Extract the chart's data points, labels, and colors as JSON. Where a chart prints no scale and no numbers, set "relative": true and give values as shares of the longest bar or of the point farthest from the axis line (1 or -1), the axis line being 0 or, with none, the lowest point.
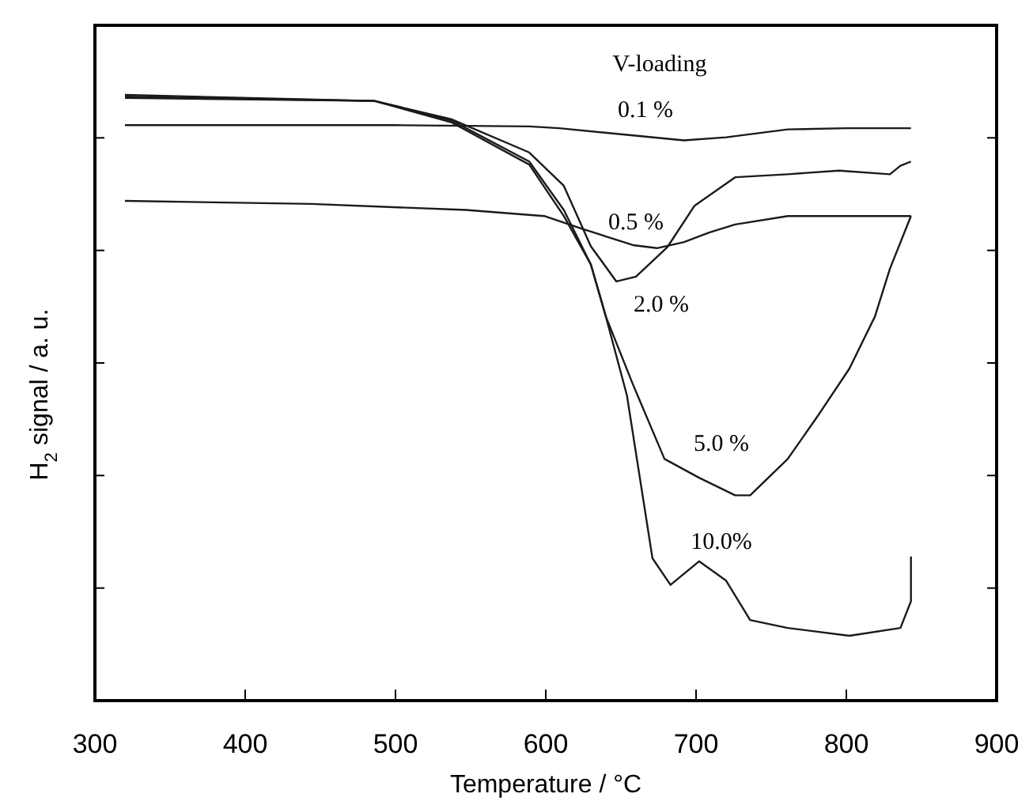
{
  "chart_data": {
    "type": "line",
    "relative": true,
    "xlabel": "Temperature / °C",
    "ylabel": "H$_{2}$ signal / a. u.",
    "legend_title": "V-loading",
    "xlim": [
      300,
      900
    ],
    "xticks": [
      300,
      400,
      500,
      600,
      700,
      800,
      900
    ],
    "line_style": "solid",
    "series": [
      {
        "name": "0.1 %",
        "color": "#1a1a1a",
        "x": [
          320,
          400,
          500,
          589,
          609,
          650,
          692,
          720,
          761,
          800,
          843
        ],
        "values": [
          0.95,
          0.95,
          0.95,
          0.948,
          0.945,
          0.935,
          0.925,
          0.93,
          0.943,
          0.945,
          0.945
        ]
      },
      {
        "name": "0.5 %",
        "color": "#1a1a1a",
        "x": [
          320,
          444,
          547,
          599,
          623,
          658,
          674,
          692,
          709,
          726,
          761,
          795,
          843
        ],
        "values": [
          0.825,
          0.82,
          0.81,
          0.8,
          0.78,
          0.752,
          0.747,
          0.757,
          0.773,
          0.786,
          0.8,
          0.8,
          0.8
        ]
      },
      {
        "name": "2.0 %",
        "color": "#1a1a1a",
        "x": [
          320,
          486,
          537,
          589,
          612,
          630,
          647,
          660,
          681,
          699,
          726,
          761,
          795,
          829,
          836,
          843
        ],
        "values": [
          0.995,
          0.99,
          0.96,
          0.905,
          0.85,
          0.75,
          0.692,
          0.7,
          0.749,
          0.817,
          0.864,
          0.869,
          0.875,
          0.869,
          0.883,
          0.89
        ]
      },
      {
        "name": "5.0 %",
        "color": "#1a1a1a",
        "x": [
          320,
          486,
          537,
          589,
          612,
          630,
          640,
          658,
          679,
          702,
          726,
          736,
          761,
          781,
          802,
          819,
          829,
          843
        ],
        "values": [
          0.997,
          0.99,
          0.955,
          0.885,
          0.8,
          0.72,
          0.634,
          0.522,
          0.399,
          0.368,
          0.339,
          0.339,
          0.399,
          0.47,
          0.548,
          0.634,
          0.713,
          0.8
        ]
      },
      {
        "name": "10.0%",
        "color": "#1a1a1a",
        "x": [
          320,
          486,
          537,
          589,
          612,
          630,
          640,
          654,
          671,
          683,
          702,
          720,
          736,
          761,
          802,
          836,
          843,
          843
        ],
        "values": [
          1.0,
          0.99,
          0.958,
          0.89,
          0.81,
          0.72,
          0.634,
          0.504,
          0.235,
          0.191,
          0.23,
          0.198,
          0.133,
          0.12,
          0.107,
          0.12,
          0.164,
          0.238
        ]
      }
    ]
  }
}
